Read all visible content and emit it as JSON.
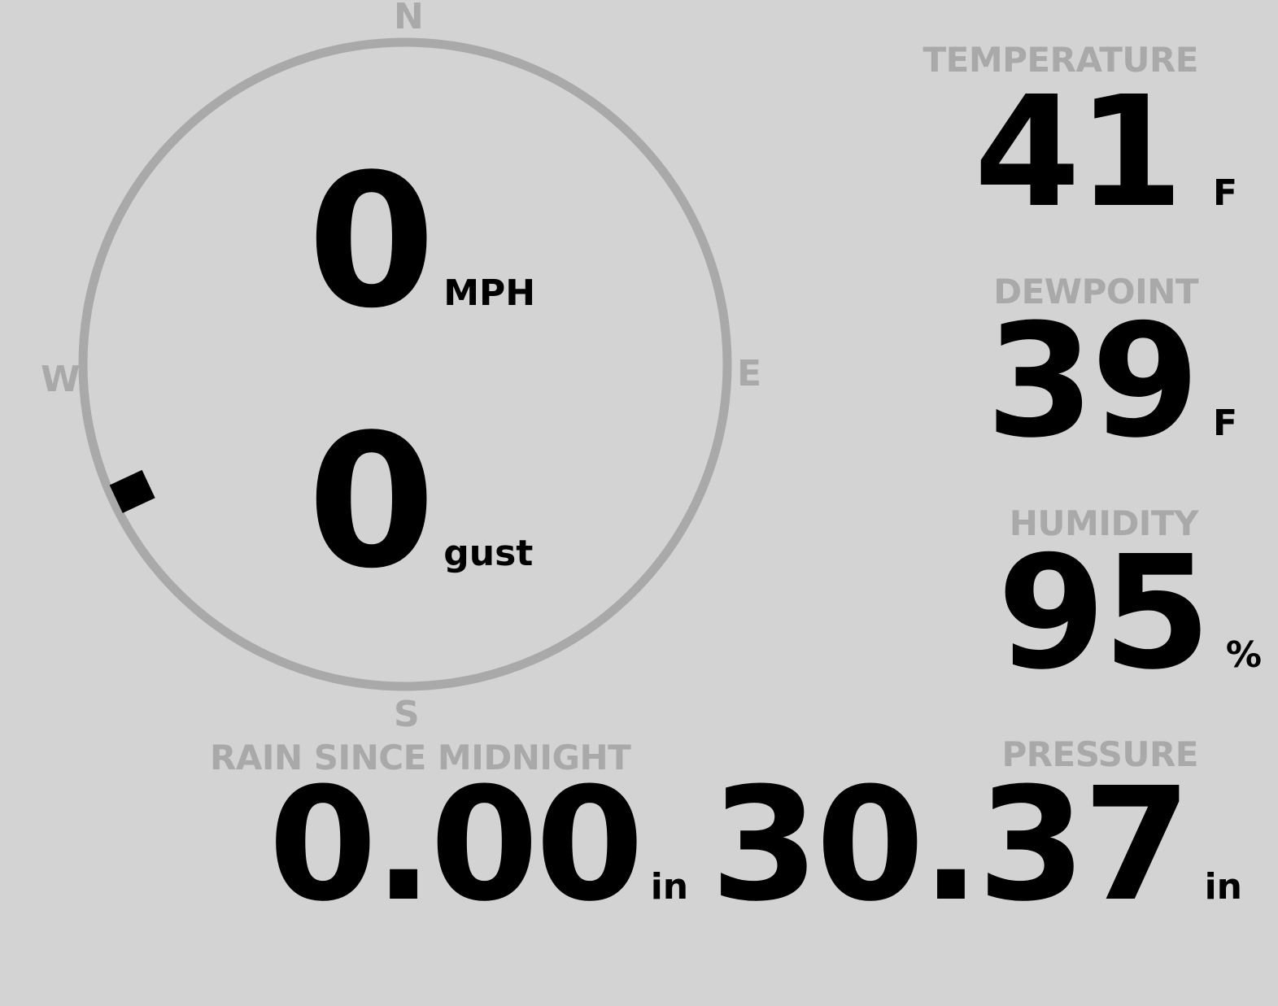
{
  "compass": {
    "north": "N",
    "east": "E",
    "south": "S",
    "west": "W",
    "wind_direction_deg": 245,
    "ring_color": "#a9a9a9",
    "marker_color": "#000000"
  },
  "wind": {
    "speed": "0",
    "speed_unit": "MPH",
    "gust": "0",
    "gust_unit": "gust"
  },
  "temperature": {
    "label": "TEMPERATURE",
    "value": "41",
    "unit": "F"
  },
  "dewpoint": {
    "label": "DEWPOINT",
    "value": "39",
    "unit": "F"
  },
  "humidity": {
    "label": "HUMIDITY",
    "value": "95",
    "unit": "%"
  },
  "rain": {
    "label": "RAIN SINCE MIDNIGHT",
    "value": "0.00",
    "unit": "in"
  },
  "pressure": {
    "label": "PRESSURE",
    "value": "30.37",
    "unit": "in"
  },
  "colors": {
    "background": "#d3d3d3",
    "label": "#a9a9a9",
    "value": "#000000"
  }
}
